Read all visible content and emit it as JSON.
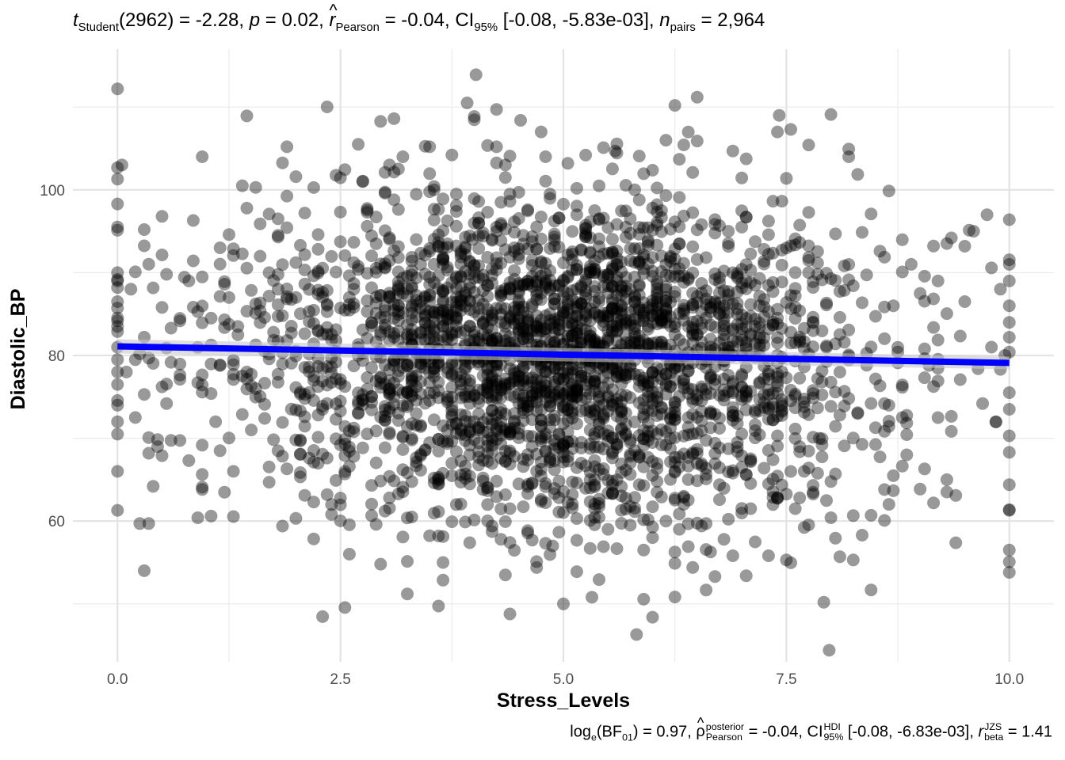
{
  "title_top": {
    "t_symbol": "t",
    "t_sub": "Student",
    "t_df": "(2962)",
    "t_value": "-2.28",
    "p_symbol": "p",
    "p_value": "0.02",
    "r_symbol": "r",
    "r_hat": "^",
    "r_sub": "Pearson",
    "r_value": "-0.04",
    "ci_symbol": "CI",
    "ci_sub": "95%",
    "ci_value": "[-0.08, -5.83e-03]",
    "n_symbol": "n",
    "n_sub": "pairs",
    "n_value": "2,964"
  },
  "caption_bottom": {
    "log_symbol": "log",
    "log_sub": "e",
    "bf_symbol": "BF",
    "bf_sub": "01",
    "bf_value": "0.97",
    "rho_symbol": "ρ",
    "rho_hat": "^",
    "rho_sup": "posterior",
    "rho_sub": "Pearson",
    "rho_value": "-0.04",
    "ci_symbol": "CI",
    "ci_sup": "HDI",
    "ci_sub": "95%",
    "ci_value": "[-0.08, -6.83e-03]",
    "rbeta_symbol": "r",
    "rbeta_sup": "JZS",
    "rbeta_sub": "beta",
    "rbeta_value": "1.41"
  },
  "chart_data": {
    "type": "scatter",
    "xlabel": "Stress_Levels",
    "ylabel": "Diastolic_BP",
    "xlim": [
      -0.5,
      10.5
    ],
    "ylim": [
      43,
      117
    ],
    "x_ticks": [
      0,
      2.5,
      5,
      7.5,
      10
    ],
    "x_tick_labels": [
      "0.0",
      "2.5",
      "5.0",
      "7.5",
      "10.0"
    ],
    "y_ticks": [
      60,
      80,
      100
    ],
    "y_tick_labels": [
      "60",
      "80",
      "100"
    ],
    "grid": true,
    "n_points": 2964,
    "point_color": "#000000",
    "point_opacity": 0.4,
    "regression_line": {
      "x": [
        0,
        10
      ],
      "y": [
        81.1,
        79.1
      ],
      "color": "#0000ff"
    },
    "points": [
      [
        0,
        112.2
      ],
      [
        0,
        101.3
      ],
      [
        0,
        98.3
      ],
      [
        0,
        90
      ],
      [
        0,
        89
      ],
      [
        0,
        88.2
      ],
      [
        0,
        86.5
      ],
      [
        0,
        84.2
      ],
      [
        0,
        83.5
      ],
      [
        0,
        81
      ],
      [
        0,
        79.5
      ],
      [
        0,
        78
      ],
      [
        0,
        76.5
      ],
      [
        0,
        74
      ],
      [
        0,
        72
      ],
      [
        0,
        70.5
      ],
      [
        0,
        66
      ],
      [
        0,
        61.3
      ],
      [
        0.05,
        103
      ],
      [
        0.2,
        90.1
      ],
      [
        0.3,
        95.2
      ],
      [
        0.15,
        88
      ],
      [
        0.25,
        80.2
      ],
      [
        0.3,
        75.3
      ],
      [
        0.1,
        78
      ],
      [
        0.2,
        72.5
      ],
      [
        0.4,
        64.2
      ],
      [
        0.45,
        69
      ],
      [
        0.25,
        59.7
      ],
      [
        0.35,
        59.7
      ],
      [
        0.3,
        54
      ],
      [
        0.5,
        96.8
      ],
      [
        0.55,
        89.8
      ],
      [
        0.6,
        83.3
      ],
      [
        0.5,
        85.8
      ],
      [
        0.55,
        74.2
      ],
      [
        0.5,
        67.9
      ],
      [
        0.8,
        89
      ],
      [
        0.9,
        85.3
      ],
      [
        0.85,
        96.3
      ],
      [
        0.95,
        104
      ],
      [
        0.8,
        67.3
      ],
      [
        0.95,
        64.1
      ],
      [
        1.05,
        75.4
      ],
      [
        1.1,
        72
      ],
      [
        1.05,
        60.6
      ],
      [
        1.15,
        93
      ],
      [
        1.2,
        88.6
      ],
      [
        1.25,
        94.6
      ],
      [
        1.3,
        66
      ],
      [
        1.4,
        100.5
      ],
      [
        1.35,
        82.5
      ],
      [
        1.45,
        78
      ],
      [
        1.5,
        71
      ],
      [
        1.55,
        76
      ],
      [
        1.7,
        90
      ],
      [
        1.8,
        96.5
      ],
      [
        1.85,
        59.4
      ],
      [
        1.9,
        105.2
      ],
      [
        2.0,
        101.6
      ],
      [
        2.05,
        93.3
      ],
      [
        2.1,
        74.8
      ],
      [
        2.15,
        67.6
      ],
      [
        2.2,
        62.3
      ],
      [
        2.3,
        73.5
      ],
      [
        2.35,
        63.2
      ],
      [
        2.4,
        62
      ],
      [
        2.5,
        69.2
      ],
      [
        2.55,
        65.7
      ],
      [
        2.6,
        56
      ],
      [
        2.7,
        105.5
      ],
      [
        2.75,
        101
      ],
      [
        2.8,
        97.3
      ],
      [
        2.9,
        59.6
      ],
      [
        2.95,
        54.8
      ],
      [
        3.0,
        61.2
      ],
      [
        3.05,
        103
      ],
      [
        3.1,
        98.8
      ],
      [
        3.2,
        104
      ],
      [
        3.25,
        51.2
      ],
      [
        3.3,
        60.5
      ],
      [
        3.35,
        73
      ],
      [
        3.5,
        105.2
      ],
      [
        3.55,
        100
      ],
      [
        3.6,
        58.2
      ],
      [
        3.65,
        55
      ],
      [
        3.7,
        69.6
      ],
      [
        3.8,
        62
      ],
      [
        3.92,
        110.5
      ],
      [
        3.98,
        94
      ],
      [
        4.02,
        113.9
      ],
      [
        4.05,
        96
      ],
      [
        4.1,
        63.8
      ],
      [
        4.15,
        62
      ],
      [
        4.2,
        59.4
      ],
      [
        4.25,
        105.2
      ],
      [
        4.3,
        98.5
      ],
      [
        4.35,
        53.5
      ],
      [
        4.4,
        61.5
      ],
      [
        4.45,
        93
      ],
      [
        4.52,
        108.4
      ],
      [
        4.6,
        97.6
      ],
      [
        4.65,
        57.7
      ],
      [
        4.7,
        55.1
      ],
      [
        4.75,
        107
      ],
      [
        4.8,
        104
      ],
      [
        4.88,
        57
      ],
      [
        4.95,
        61.1
      ],
      [
        5.0,
        50
      ],
      [
        5.05,
        103.2
      ],
      [
        5.1,
        61.6
      ],
      [
        5.15,
        97
      ],
      [
        5.2,
        67
      ],
      [
        5.25,
        104.2
      ],
      [
        5.3,
        56.7
      ],
      [
        5.32,
        50.8
      ],
      [
        5.4,
        96.5
      ],
      [
        5.45,
        105.1
      ],
      [
        5.5,
        59
      ],
      [
        5.58,
        104.7
      ],
      [
        5.65,
        61.3
      ],
      [
        5.75,
        59.5
      ],
      [
        5.8,
        100
      ],
      [
        5.82,
        46.3
      ],
      [
        5.9,
        56.5
      ],
      [
        6.0,
        58
      ],
      [
        6.1,
        97.5
      ],
      [
        6.15,
        106
      ],
      [
        6.25,
        110.2
      ],
      [
        6.3,
        59
      ],
      [
        6.35,
        63
      ],
      [
        6.45,
        54.4
      ],
      [
        6.5,
        105.9
      ],
      [
        6.55,
        95.8
      ],
      [
        6.6,
        59.7
      ],
      [
        6.7,
        53.3
      ],
      [
        6.75,
        71.2
      ],
      [
        6.8,
        57.8
      ],
      [
        6.85,
        95
      ],
      [
        6.9,
        104.7
      ],
      [
        7.0,
        95.5
      ],
      [
        7.1,
        61.5
      ],
      [
        7.2,
        86
      ],
      [
        7.3,
        85.3
      ],
      [
        7.35,
        62
      ],
      [
        7.42,
        109
      ],
      [
        7.5,
        55.3
      ],
      [
        7.55,
        107.3
      ],
      [
        7.6,
        61.5
      ],
      [
        7.7,
        66
      ],
      [
        7.8,
        88.9
      ],
      [
        7.87,
        70
      ],
      [
        7.92,
        50.2
      ],
      [
        7.98,
        44.4
      ],
      [
        8.0,
        109.1
      ],
      [
        8.05,
        65.7
      ],
      [
        8.1,
        55.7
      ],
      [
        8.2,
        104
      ],
      [
        8.25,
        55.3
      ],
      [
        8.35,
        58.3
      ],
      [
        8.45,
        60.7
      ],
      [
        8.55,
        92.6
      ],
      [
        8.6,
        63.8
      ],
      [
        8.7,
        86
      ],
      [
        8.8,
        72.5
      ],
      [
        8.85,
        68
      ],
      [
        8.9,
        91
      ],
      [
        9.0,
        87.5
      ],
      [
        9.05,
        66.3
      ],
      [
        9.15,
        62.2
      ],
      [
        9.2,
        89
      ],
      [
        9.3,
        65
      ],
      [
        9.35,
        94.2
      ],
      [
        9.4,
        63.1
      ],
      [
        9.5,
        86.5
      ],
      [
        9.6,
        95
      ],
      [
        9.7,
        74.2
      ],
      [
        9.75,
        97
      ],
      [
        9.8,
        81
      ],
      [
        9.85,
        72
      ],
      [
        9.9,
        88
      ],
      [
        9.95,
        80
      ],
      [
        10,
        96.4
      ],
      [
        10,
        91
      ],
      [
        10,
        89
      ],
      [
        10,
        86
      ],
      [
        10,
        84
      ],
      [
        10,
        82.2
      ],
      [
        10,
        80.4
      ],
      [
        10,
        73.5
      ],
      [
        10,
        70.3
      ],
      [
        10,
        68.3
      ],
      [
        10,
        64.4
      ],
      [
        10,
        61.3
      ],
      [
        10,
        56.5
      ],
      [
        10,
        53.8
      ]
    ]
  }
}
